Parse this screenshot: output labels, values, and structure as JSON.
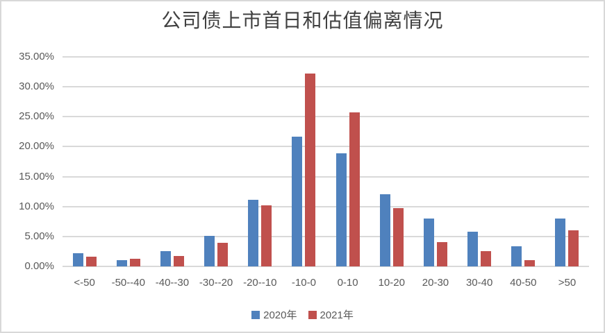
{
  "chart_data": {
    "type": "bar",
    "title": "公司债上市首日和估值偏离情况",
    "categories": [
      "<-50",
      "-50--40",
      "-40--30",
      "-30--20",
      "-20--10",
      "-10-0",
      "0-10",
      "10-20",
      "20-30",
      "30-40",
      "40-50",
      ">50"
    ],
    "series": [
      {
        "name": "2020年",
        "color": "#4F81BD",
        "values": [
          2.2,
          1.0,
          2.6,
          5.1,
          11.1,
          21.7,
          18.9,
          12.1,
          8.0,
          5.8,
          3.4,
          8.0
        ]
      },
      {
        "name": "2021年",
        "color": "#C0504D",
        "values": [
          1.6,
          1.3,
          1.7,
          3.9,
          10.2,
          32.2,
          25.7,
          9.7,
          4.1,
          2.6,
          1.1,
          6.0
        ]
      }
    ],
    "y_ticks": [
      "35.00%",
      "30.00%",
      "25.00%",
      "20.00%",
      "15.00%",
      "10.00%",
      "5.00%",
      "0.00%"
    ],
    "ylim": [
      0,
      35
    ],
    "xlabel": "",
    "ylabel": "",
    "grid": true,
    "legend_position": "bottom",
    "colors": {
      "gridline": "#d9d9d9",
      "axis_text": "#595959",
      "title_text": "#404040",
      "border": "#d8d8d8",
      "background": "#ffffff"
    }
  }
}
